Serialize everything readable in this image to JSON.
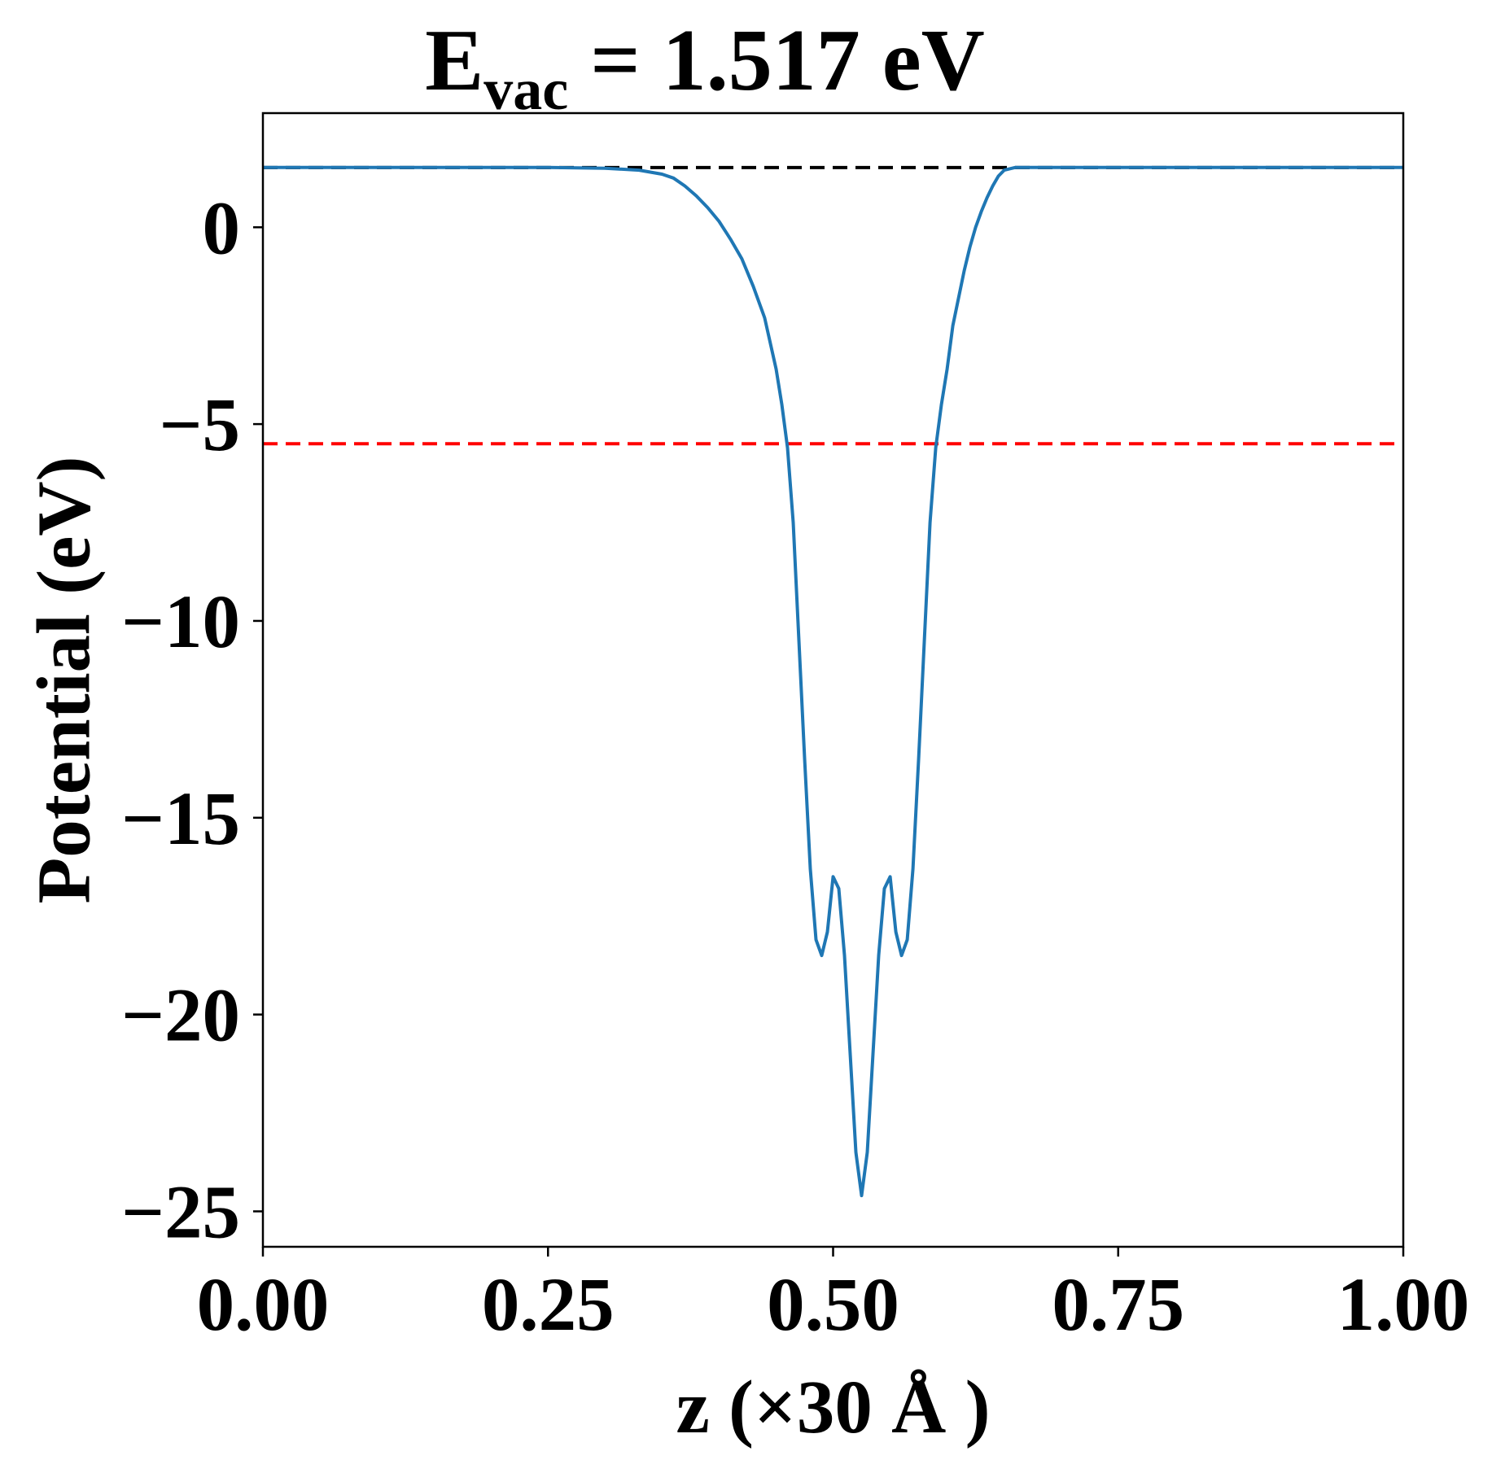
{
  "chart_data": {
    "type": "line",
    "title": {
      "main": "E",
      "subscript": "vac",
      "rest": " = 1.517 eV"
    },
    "xlabel": "z (×30 Å )",
    "ylabel": "Potential (eV)",
    "xlim": [
      0,
      1
    ],
    "ylim": [
      -25.9,
      2.9
    ],
    "xticks": [
      0,
      0.25,
      0.5,
      0.75,
      1.0
    ],
    "xtick_labels": [
      "0.00",
      "0.25",
      "0.50",
      "0.75",
      "1.00"
    ],
    "yticks": [
      0,
      -5,
      -10,
      -15,
      -20,
      -25
    ],
    "ytick_labels": [
      "0",
      "−5",
      "−10",
      "−15",
      "−20",
      "−25"
    ],
    "grid": false,
    "series": [
      {
        "color": "#1f77b4",
        "style": "solid",
        "x": [
          0.0,
          0.05,
          0.1,
          0.15,
          0.2,
          0.25,
          0.3,
          0.33,
          0.35,
          0.36,
          0.37,
          0.38,
          0.39,
          0.4,
          0.41,
          0.42,
          0.43,
          0.44,
          0.45,
          0.455,
          0.46,
          0.465,
          0.47,
          0.475,
          0.48,
          0.485,
          0.49,
          0.495,
          0.5,
          0.505,
          0.51,
          0.515,
          0.52,
          0.525,
          0.53,
          0.535,
          0.54,
          0.545,
          0.55,
          0.555,
          0.56,
          0.565,
          0.57,
          0.575,
          0.58,
          0.585,
          0.59,
          0.595,
          0.6,
          0.605,
          0.61,
          0.615,
          0.62,
          0.625,
          0.63,
          0.635,
          0.64,
          0.645,
          0.65,
          0.66,
          0.67,
          0.68,
          0.69,
          0.7,
          0.71,
          0.72,
          0.73,
          0.74,
          0.75,
          0.76,
          0.78,
          0.8,
          0.85,
          0.9,
          0.95,
          1.0
        ],
        "y": [
          1.52,
          1.52,
          1.52,
          1.52,
          1.52,
          1.52,
          1.5,
          1.45,
          1.35,
          1.25,
          1.05,
          0.8,
          0.5,
          0.15,
          -0.3,
          -0.8,
          -1.5,
          -2.3,
          -3.6,
          -4.5,
          -5.6,
          -7.5,
          -10.5,
          -13.5,
          -16.3,
          -18.1,
          -18.5,
          -17.9,
          -16.5,
          -16.8,
          -18.5,
          -21.0,
          -23.5,
          -24.6,
          -23.5,
          -21.0,
          -18.5,
          -16.8,
          -16.5,
          -17.9,
          -18.5,
          -18.1,
          -16.3,
          -13.5,
          -10.5,
          -7.5,
          -5.6,
          -4.5,
          -3.6,
          -2.5,
          -1.8,
          -1.1,
          -0.5,
          0.0,
          0.4,
          0.75,
          1.05,
          1.3,
          1.45,
          1.52,
          1.52,
          1.52,
          1.52,
          1.52,
          1.52,
          1.52,
          1.52,
          1.52,
          1.52,
          1.52,
          1.52,
          1.52,
          1.52,
          1.52,
          1.52,
          1.52
        ]
      },
      {
        "color": "#000000",
        "style": "dashed",
        "x": [
          0,
          1
        ],
        "y": [
          1.517,
          1.517
        ]
      },
      {
        "color": "#ff0000",
        "style": "dashed",
        "x": [
          0,
          1
        ],
        "y": [
          -5.5,
          -5.5
        ]
      }
    ]
  }
}
